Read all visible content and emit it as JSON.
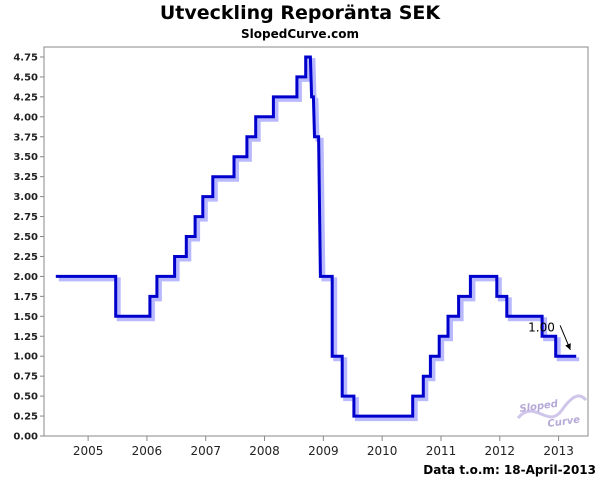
{
  "title": "Utveckling Reporänta SEK",
  "subtitle": "SlopedCurve.com",
  "footer": "Data t.o.m: 18-April-2013",
  "logo": {
    "line1": "Sloped",
    "line2": "Curve"
  },
  "colors": {
    "line": "#0000cc",
    "shadow": "#b9b9ff",
    "plot_bg": "#ffffff",
    "axis": "#888888"
  },
  "chart_data": {
    "type": "line",
    "step": true,
    "title": "Utveckling Reporänta SEK",
    "subtitle": "SlopedCurve.com",
    "xlabel": "",
    "ylabel": "",
    "xlim": [
      2004.25,
      2013.5
    ],
    "ylim": [
      0,
      4.875
    ],
    "grid": false,
    "x_ticks": [
      2005,
      2006,
      2007,
      2008,
      2009,
      2010,
      2011,
      2012,
      2013
    ],
    "y_ticks": [
      0.0,
      0.25,
      0.5,
      0.75,
      1.0,
      1.25,
      1.5,
      1.75,
      2.0,
      2.25,
      2.5,
      2.75,
      3.0,
      3.25,
      3.5,
      3.75,
      4.0,
      4.25,
      4.5,
      4.75
    ],
    "y_tick_labels": [
      "0.00",
      "0.25",
      "0.50",
      "0.75",
      "1.00",
      "1.25",
      "1.50",
      "1.75",
      "2.00",
      "2.25",
      "2.50",
      "2.75",
      "3.00",
      "3.25",
      "3.50",
      "3.75",
      "4.00",
      "4.25",
      "4.50",
      "4.75"
    ],
    "x_tick_labels": [
      "2005",
      "2006",
      "2007",
      "2008",
      "2009",
      "2010",
      "2011",
      "2012",
      "2013"
    ],
    "series": [
      {
        "values": [
          [
            2004.45,
            2.0
          ],
          [
            2005.47,
            2.0
          ],
          [
            2005.47,
            1.5
          ],
          [
            2006.05,
            1.5
          ],
          [
            2006.05,
            1.75
          ],
          [
            2006.17,
            1.75
          ],
          [
            2006.17,
            2.0
          ],
          [
            2006.47,
            2.0
          ],
          [
            2006.47,
            2.25
          ],
          [
            2006.67,
            2.25
          ],
          [
            2006.67,
            2.5
          ],
          [
            2006.82,
            2.5
          ],
          [
            2006.82,
            2.75
          ],
          [
            2006.95,
            2.75
          ],
          [
            2006.95,
            3.0
          ],
          [
            2007.12,
            3.0
          ],
          [
            2007.12,
            3.25
          ],
          [
            2007.48,
            3.25
          ],
          [
            2007.48,
            3.5
          ],
          [
            2007.7,
            3.5
          ],
          [
            2007.7,
            3.75
          ],
          [
            2007.85,
            3.75
          ],
          [
            2007.85,
            4.0
          ],
          [
            2008.15,
            4.0
          ],
          [
            2008.15,
            4.25
          ],
          [
            2008.55,
            4.25
          ],
          [
            2008.55,
            4.5
          ],
          [
            2008.7,
            4.5
          ],
          [
            2008.7,
            4.75
          ],
          [
            2008.78,
            4.75
          ],
          [
            2008.8,
            4.25
          ],
          [
            2008.83,
            4.25
          ],
          [
            2008.85,
            3.75
          ],
          [
            2008.92,
            3.75
          ],
          [
            2008.95,
            2.0
          ],
          [
            2009.15,
            2.0
          ],
          [
            2009.15,
            1.0
          ],
          [
            2009.32,
            1.0
          ],
          [
            2009.32,
            0.5
          ],
          [
            2009.52,
            0.5
          ],
          [
            2009.52,
            0.25
          ],
          [
            2010.52,
            0.25
          ],
          [
            2010.52,
            0.5
          ],
          [
            2010.7,
            0.5
          ],
          [
            2010.7,
            0.75
          ],
          [
            2010.82,
            0.75
          ],
          [
            2010.82,
            1.0
          ],
          [
            2010.97,
            1.0
          ],
          [
            2010.97,
            1.25
          ],
          [
            2011.12,
            1.25
          ],
          [
            2011.12,
            1.5
          ],
          [
            2011.3,
            1.5
          ],
          [
            2011.3,
            1.75
          ],
          [
            2011.5,
            1.75
          ],
          [
            2011.5,
            2.0
          ],
          [
            2011.95,
            2.0
          ],
          [
            2011.95,
            1.75
          ],
          [
            2012.12,
            1.75
          ],
          [
            2012.12,
            1.5
          ],
          [
            2012.72,
            1.5
          ],
          [
            2012.72,
            1.25
          ],
          [
            2012.95,
            1.25
          ],
          [
            2012.95,
            1.0
          ],
          [
            2013.3,
            1.0
          ]
        ]
      }
    ],
    "annotations": [
      {
        "text": "1.00",
        "x": 2012.72,
        "y": 1.36,
        "arrow_to": [
          2013.2,
          1.08
        ]
      }
    ]
  }
}
